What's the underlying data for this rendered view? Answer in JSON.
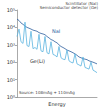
{
  "chart_data": {
    "type": "line",
    "annotations": [
      "Scintillator (NaI)",
      "Semiconductor detector (Ge)",
      "NaI",
      "Ge(Li)",
      "Source: 108mAg + 110mAg"
    ],
    "x_label": "Energy",
    "x": [
      0,
      50,
      100,
      150,
      200,
      250,
      300,
      350,
      400,
      450,
      500,
      550,
      600,
      650,
      700,
      750,
      800,
      850,
      900,
      950,
      1000,
      1050,
      1100,
      1150,
      1200,
      1250,
      1300,
      1350,
      1400,
      1450,
      1500,
      1550,
      1600,
      1650,
      1700,
      1750,
      1800,
      1850,
      1900,
      1950,
      2000
    ],
    "series": [
      {
        "name": "NaI",
        "color": "#2f5f9e",
        "values": [
          30000,
          25000,
          18000,
          15000,
          12000,
          10000,
          9000,
          8000,
          7000,
          6500,
          6000,
          5000,
          4500,
          4200,
          3800,
          3000,
          2500,
          2000,
          1800,
          1500,
          1300,
          1000,
          800,
          700,
          600,
          500,
          450,
          400,
          350,
          300,
          250,
          200,
          180,
          160,
          150,
          140,
          120,
          110,
          100,
          90,
          80
        ]
      },
      {
        "name": "Ge(Li)",
        "color": "#5ab4e0",
        "values": [
          3000,
          8000,
          1500,
          1200,
          20000,
          900,
          800,
          6000,
          600,
          700,
          550,
          4000,
          450,
          400,
          3000,
          350,
          300,
          1500,
          280,
          250,
          200,
          800,
          180,
          150,
          140,
          500,
          120,
          100,
          90,
          300,
          80,
          70,
          60,
          200,
          50,
          45,
          40,
          100,
          35,
          30,
          25
        ]
      }
    ],
    "xlim": [
      0,
      2000
    ],
    "ylim": [
      1,
      100000
    ],
    "yticks": [
      {
        "value": 1,
        "label": "10⁰"
      },
      {
        "value": 10,
        "label": "10¹"
      },
      {
        "value": 100,
        "label": "10²"
      },
      {
        "value": 1000,
        "label": "10³"
      },
      {
        "value": 10000,
        "label": "10⁴"
      },
      {
        "value": 100000,
        "label": "10⁵"
      }
    ],
    "log": "y",
    "grid": false,
    "tick_labels": "y"
  }
}
